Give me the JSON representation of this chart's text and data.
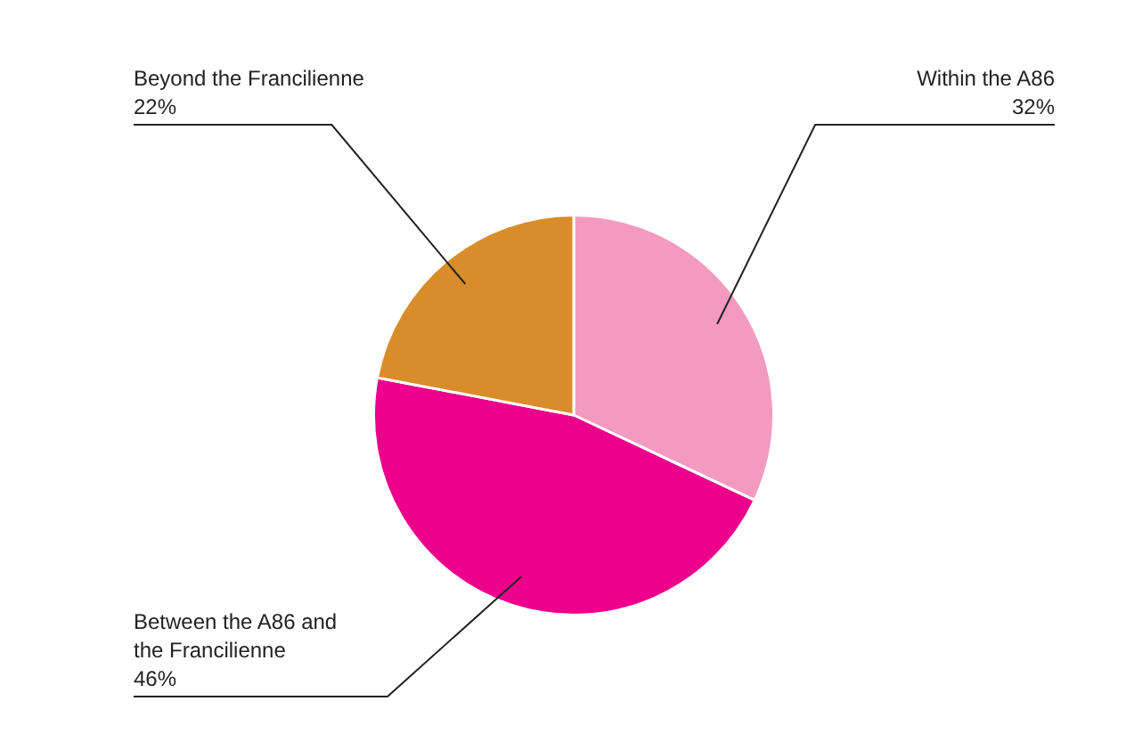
{
  "chart_data": {
    "type": "pie",
    "categories": [
      "Within the A86",
      "Between the A86 and the Francilienne",
      "Beyond the Francilienne"
    ],
    "values": [
      32,
      46,
      22
    ],
    "colors": [
      "#f49ac1",
      "#ec008c",
      "#d98c2a"
    ],
    "value_labels": [
      "32%",
      "46%",
      "22%"
    ],
    "legend": false
  }
}
